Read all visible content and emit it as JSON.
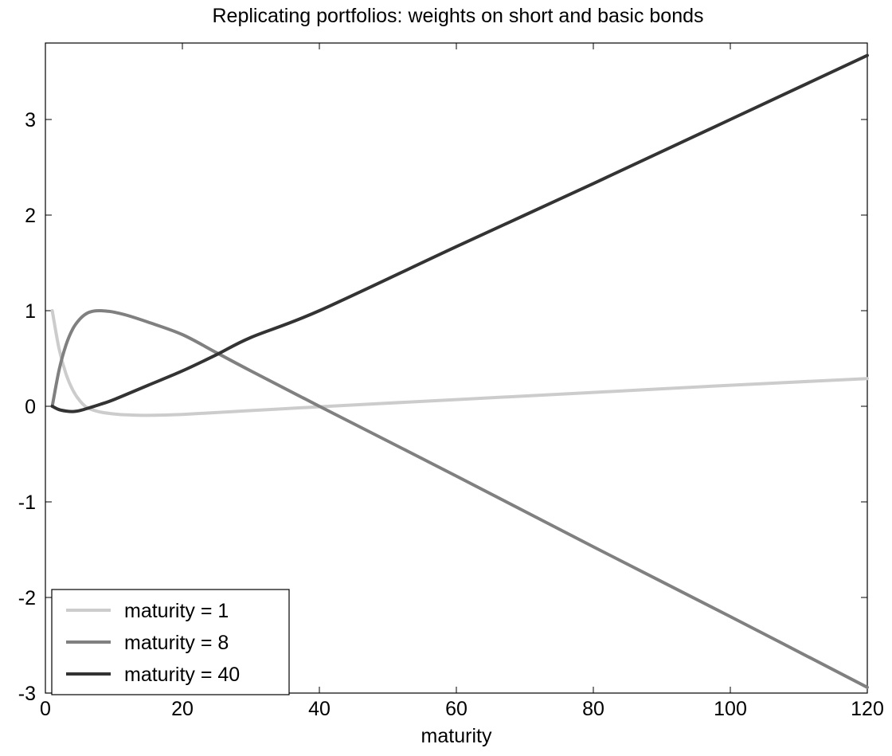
{
  "chart_data": {
    "type": "line",
    "title": "Replicating portfolios: weights on short and basic bonds",
    "xlabel": "maturity",
    "ylabel": "",
    "xlim": [
      0,
      120
    ],
    "ylim": [
      -3,
      3.8
    ],
    "x_ticks": [
      0,
      20,
      40,
      60,
      80,
      100,
      120
    ],
    "y_ticks": [
      -3,
      -2,
      -1,
      0,
      1,
      2,
      3
    ],
    "grid": false,
    "legend_position": "bottom-left",
    "series": [
      {
        "name": "maturity = 1",
        "color": "#cccccc",
        "x": [
          1,
          2,
          3,
          4,
          5,
          6,
          7,
          8,
          10,
          12,
          15,
          20,
          30,
          40,
          60,
          80,
          100,
          120
        ],
        "y": [
          1.0,
          0.6,
          0.34,
          0.17,
          0.06,
          -0.01,
          -0.04,
          -0.06,
          -0.08,
          -0.09,
          -0.095,
          -0.085,
          -0.045,
          -0.005,
          0.07,
          0.145,
          0.22,
          0.29
        ]
      },
      {
        "name": "maturity = 8",
        "color": "#808080",
        "x": [
          1,
          2,
          3,
          4,
          5,
          6,
          7,
          8,
          9,
          10,
          12,
          15,
          20,
          25,
          30,
          40,
          60,
          80,
          100,
          120
        ],
        "y": [
          0.0,
          0.38,
          0.64,
          0.81,
          0.91,
          0.97,
          0.995,
          1.0,
          0.995,
          0.985,
          0.95,
          0.88,
          0.75,
          0.56,
          0.37,
          0.0,
          -0.73,
          -1.47,
          -2.2,
          -2.94
        ]
      },
      {
        "name": "maturity = 40",
        "color": "#333333",
        "x": [
          1,
          2,
          3,
          4,
          5,
          6,
          8,
          10,
          15,
          20,
          25,
          30,
          40,
          60,
          80,
          100,
          120
        ],
        "y": [
          0.0,
          -0.035,
          -0.05,
          -0.055,
          -0.045,
          -0.025,
          0.02,
          0.07,
          0.22,
          0.37,
          0.54,
          0.72,
          1.0,
          1.67,
          2.33,
          3.0,
          3.67
        ]
      }
    ]
  }
}
